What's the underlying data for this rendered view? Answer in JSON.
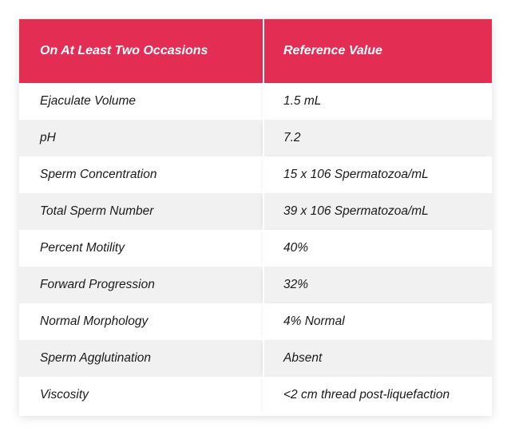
{
  "table": {
    "headers": [
      "On At Least Two Occasions",
      "Reference Value"
    ],
    "rows": [
      [
        "Ejaculate Volume",
        "1.5 mL"
      ],
      [
        "pH",
        "7.2"
      ],
      [
        "Sperm Concentration",
        "15 x 106 Spermatozoa/mL"
      ],
      [
        "Total Sperm Number",
        "39 x 106 Spermatozoa/mL"
      ],
      [
        "Percent Motility",
        "40%"
      ],
      [
        "Forward Progression",
        "32%"
      ],
      [
        "Normal Morphology",
        "4% Normal"
      ],
      [
        "Sperm Agglutination",
        "Absent"
      ],
      [
        "Viscosity",
        "<2 cm thread post-liquefaction"
      ]
    ]
  },
  "colors": {
    "header_bg": "#e42d53",
    "header_text": "#ffffff",
    "stripe": "#f1f1f1"
  }
}
